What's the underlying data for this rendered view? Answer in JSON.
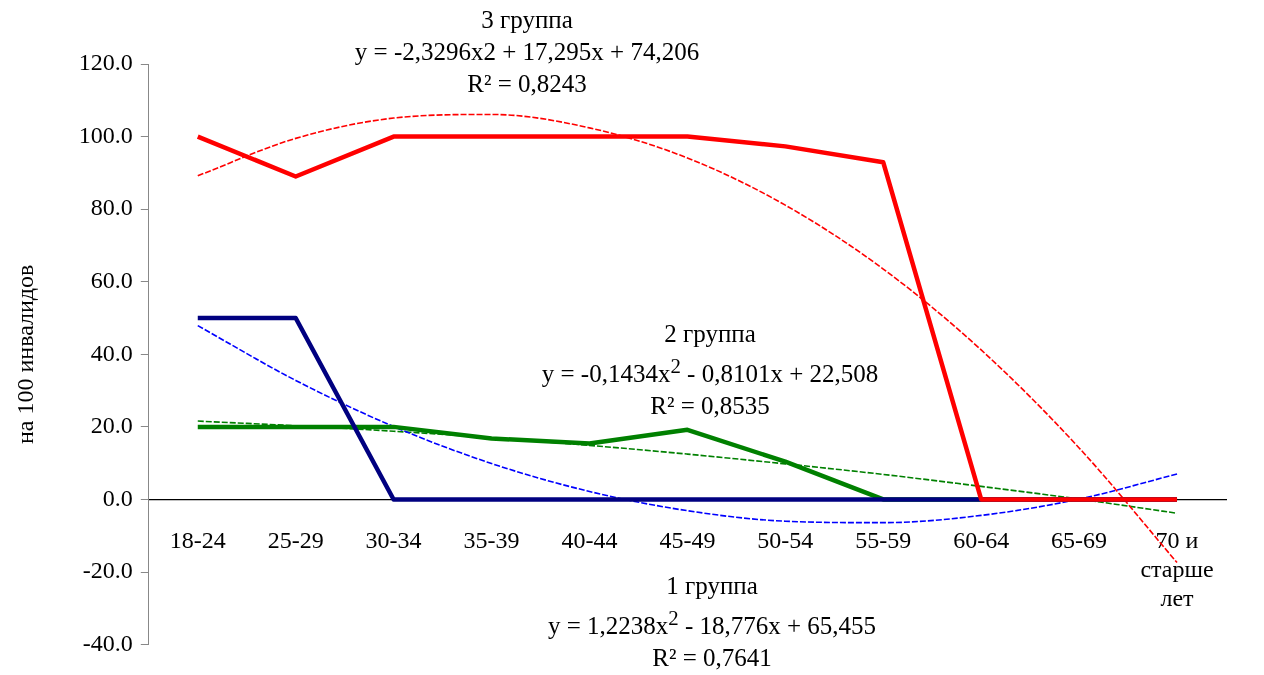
{
  "chart_data": {
    "type": "line",
    "ylabel": "на 100 инвалидов",
    "categories": [
      "18-24",
      "25-29",
      "30-34",
      "35-39",
      "40-44",
      "45-49",
      "50-54",
      "55-59",
      "60-64",
      "65-69",
      "70 и старше лет"
    ],
    "series": [
      {
        "color": "#ff0000",
        "values": [
          100,
          89,
          100,
          100,
          100,
          100,
          97.3,
          92.9,
          0,
          0,
          0
        ]
      },
      {
        "color": "#000080",
        "values": [
          50,
          50,
          0,
          0,
          0,
          0,
          0,
          0,
          0,
          0,
          0
        ]
      },
      {
        "color": "#008000",
        "values": [
          20,
          20,
          20,
          16.8,
          15.4,
          19.2,
          10.4,
          0,
          0,
          0,
          0
        ]
      },
      {
        "type": "line",
        "line_style": "dashed",
        "color": "#ff0000",
        "values": [
          89.2,
          99.5,
          105.1,
          106.1,
          102.4,
          94.1,
          81.1,
          63.5,
          41.2,
          14.2,
          -17.4
        ]
      },
      {
        "type": "line",
        "line_style": "dashed",
        "color": "#0000ff",
        "values": [
          47.9,
          32.8,
          20.1,
          9.9,
          2.2,
          -3.1,
          -6.0,
          -6.4,
          -4.4,
          0.1,
          7.0
        ]
      },
      {
        "type": "line",
        "line_style": "dashed",
        "color": "#008000",
        "values": [
          21.6,
          20.3,
          18.8,
          17.0,
          14.9,
          12.5,
          9.8,
          6.9,
          3.6,
          0.1,
          -3.8
        ]
      }
    ],
    "ylim": [
      -40,
      120
    ],
    "yticks": [
      {
        "value": -40,
        "label": "-40.0"
      },
      {
        "value": -20,
        "label": "-20.0"
      },
      {
        "value": 0,
        "label": "0.0"
      },
      {
        "value": 20,
        "label": "20.0"
      },
      {
        "value": 40,
        "label": "40.0"
      },
      {
        "value": 60,
        "label": "60.0"
      },
      {
        "value": 80,
        "label": "80.0"
      },
      {
        "value": 100,
        "label": "100.0"
      },
      {
        "value": 120,
        "label": "120.0"
      }
    ],
    "annotations": [
      "3 группа\ny = -2,3296x2 + 17,295x + 74,206\nR² = 0,8243",
      "2 группа\ny = -0,1434x$^{2}$ - 0,8101x + 22,508\nR² = 0,8535",
      "1 группа\ny = 1,2238x$^{2}$ - 18,776x + 65,455\nR² = 0,7641"
    ],
    "grid": false,
    "legend": false
  }
}
